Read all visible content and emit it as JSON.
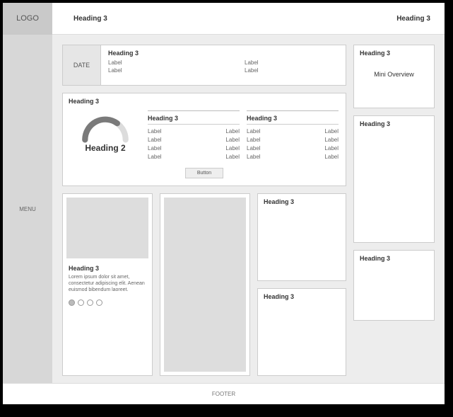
{
  "logo": "LOGO",
  "header": {
    "left": "Heading 3",
    "right": "Heading 3"
  },
  "sidebar": {
    "menu": "MENU"
  },
  "top_panel": {
    "date_label": "DATE",
    "title": "Heading 3",
    "labels": [
      "Label",
      "Label",
      "Label",
      "Label"
    ]
  },
  "gauge_panel": {
    "title": "Heading 3",
    "gauge": {
      "label": "Heading 2",
      "percent": 70,
      "track_color": "#dcdcdc",
      "fill_color": "#7a7a7a",
      "stroke_width": 10
    },
    "col_a": {
      "title": "Heading 3",
      "rows": [
        {
          "l": "Label",
          "r": "Label"
        },
        {
          "l": "Label",
          "r": "Label"
        },
        {
          "l": "Label",
          "r": "Label"
        },
        {
          "l": "Label",
          "r": "Label"
        }
      ]
    },
    "col_b": {
      "title": "Heading 3",
      "rows": [
        {
          "l": "Label",
          "r": "Label"
        },
        {
          "l": "Label",
          "r": "Label"
        },
        {
          "l": "Label",
          "r": "Label"
        },
        {
          "l": "Label",
          "r": "Label"
        }
      ]
    },
    "button_label": "Button"
  },
  "carousel": {
    "title": "Heading 3",
    "text": "Lorem ipsum dolor sit amet, consectetur adipiscing elit. Aenean euismod bibendum laoreet.",
    "active_dot": 0,
    "dot_count": 4
  },
  "stack": {
    "a": "Heading 3",
    "b": "Heading 3"
  },
  "right": {
    "p1_title": "Heading 3",
    "p1_sub": "Mini Overview",
    "p2_title": "Heading 3",
    "p3_title": "Heading 3"
  },
  "footer": "FOOTER"
}
